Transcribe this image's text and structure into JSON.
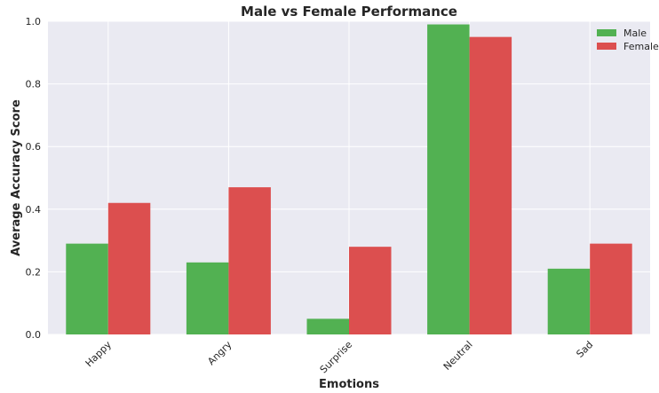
{
  "chart_data": {
    "type": "bar",
    "title": "Male vs Female Performance",
    "xlabel": "Emotions",
    "ylabel": "Average Accuracy Score",
    "categories": [
      "Happy",
      "Angry",
      "Surprise",
      "Neutral",
      "Sad"
    ],
    "series": [
      {
        "name": "Male",
        "color": "#52b152",
        "values": [
          0.29,
          0.23,
          0.05,
          0.99,
          0.21
        ]
      },
      {
        "name": "Female",
        "color": "#dc4f4f",
        "values": [
          0.42,
          0.47,
          0.28,
          0.95,
          0.29
        ]
      }
    ],
    "ylim": [
      0,
      1.0
    ],
    "yticks": [
      "0.0",
      "0.2",
      "0.4",
      "0.6",
      "0.8",
      "1.0"
    ],
    "grid": true,
    "legend_position": "top-right",
    "background": "#eaeaf2"
  }
}
